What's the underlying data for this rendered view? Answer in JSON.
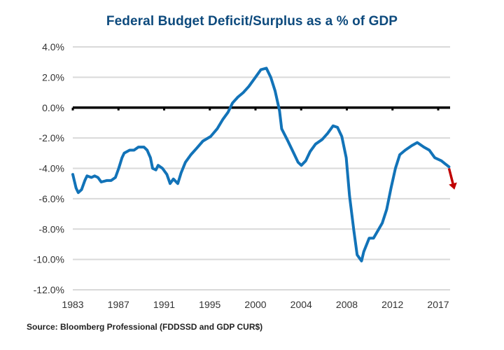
{
  "chart_data": {
    "type": "line",
    "title": "Federal Budget Deficit/Surplus as a % of GDP",
    "xlabel": "",
    "ylabel": "",
    "source": "Source: Bloomberg Professional (FDDSSD and GDP CUR$)",
    "x_tick_labels": [
      "1983",
      "1987",
      "1991",
      "1995",
      "2000",
      "2004",
      "2008",
      "2012",
      "2017"
    ],
    "x_range": [
      1983.0,
      2017.5
    ],
    "y_tick_labels": [
      "4.0%",
      "2.0%",
      "0.0%",
      "-2.0%",
      "-4.0%",
      "-6.0%",
      "-8.0%",
      "-10.0%",
      "-12.0%"
    ],
    "y_ticks": [
      4,
      2,
      0,
      -2,
      -4,
      -6,
      -8,
      -10,
      -12
    ],
    "ylim": [
      -12,
      4
    ],
    "grid": true,
    "zero_line": true,
    "series": [
      {
        "name": "Federal Budget Deficit/Surplus as % of GDP",
        "color": "#1273b8",
        "x": [
          1983.0,
          1983.3,
          1983.5,
          1983.8,
          1984.1,
          1984.3,
          1984.7,
          1985.0,
          1985.3,
          1985.6,
          1986.1,
          1986.5,
          1986.9,
          1987.2,
          1987.5,
          1987.7,
          1988.2,
          1988.6,
          1989.0,
          1989.5,
          1989.8,
          1990.1,
          1990.3,
          1990.6,
          1990.8,
          1991.2,
          1991.6,
          1991.9,
          1992.2,
          1992.6,
          1992.9,
          1993.3,
          1993.8,
          1994.3,
          1994.9,
          1995.6,
          1996.2,
          1996.7,
          1997.2,
          1997.6,
          1998.1,
          1998.6,
          1999.1,
          1999.7,
          2000.2,
          2000.7,
          2001.1,
          2001.5,
          2001.9,
          2002.1,
          2002.6,
          2003.2,
          2003.6,
          2003.9,
          2004.3,
          2004.7,
          2005.2,
          2005.8,
          2006.3,
          2006.8,
          2007.2,
          2007.6,
          2008.0,
          2008.3,
          2008.7,
          2009.0,
          2009.4,
          2009.6,
          2010.1,
          2010.5,
          2010.9,
          2011.3,
          2011.7,
          2012.1,
          2012.5,
          2012.9,
          2013.4,
          2014.0,
          2014.5,
          2015.1,
          2015.6,
          2016.1,
          2016.7,
          2017.4
        ],
        "values": [
          -4.4,
          -5.3,
          -5.6,
          -5.4,
          -4.8,
          -4.5,
          -4.6,
          -4.5,
          -4.6,
          -4.9,
          -4.8,
          -4.8,
          -4.6,
          -4.0,
          -3.3,
          -3.0,
          -2.8,
          -2.8,
          -2.6,
          -2.6,
          -2.8,
          -3.3,
          -4.0,
          -4.1,
          -3.8,
          -4.0,
          -4.4,
          -5.0,
          -4.7,
          -5.0,
          -4.3,
          -3.6,
          -3.1,
          -2.7,
          -2.2,
          -1.9,
          -1.4,
          -0.8,
          -0.3,
          0.3,
          0.7,
          1.0,
          1.4,
          2.0,
          2.5,
          2.6,
          2.0,
          1.1,
          -0.2,
          -1.4,
          -2.1,
          -3.0,
          -3.6,
          -3.8,
          -3.5,
          -2.9,
          -2.4,
          -2.1,
          -1.7,
          -1.2,
          -1.3,
          -1.9,
          -3.3,
          -5.8,
          -8.1,
          -9.7,
          -10.1,
          -9.5,
          -8.6,
          -8.6,
          -8.1,
          -7.6,
          -6.7,
          -5.3,
          -4.0,
          -3.1,
          -2.8,
          -2.5,
          -2.3,
          -2.6,
          -2.8,
          -3.3,
          -3.5,
          -3.9
        ]
      }
    ],
    "annotations": [
      {
        "type": "arrow",
        "description": "downward trend arrow",
        "color": "#c00000",
        "from": [
          2017.4,
          -4.0
        ],
        "to": [
          2017.9,
          -5.4
        ]
      }
    ]
  }
}
